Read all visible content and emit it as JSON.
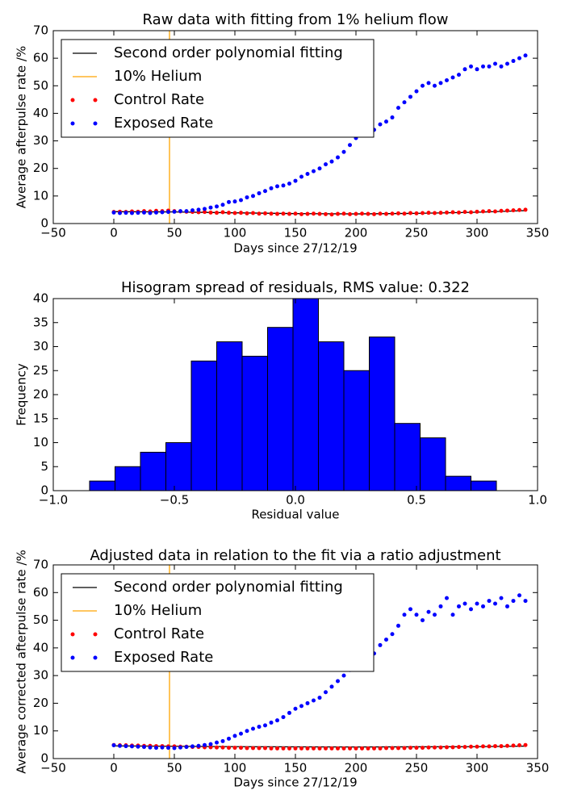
{
  "chart_data": [
    {
      "type": "scatter",
      "title": "Raw data with fitting from 1% helium flow",
      "xlabel": "Days since 27/12/19",
      "ylabel": "Average afterpulse rate /%",
      "xlim": [
        -50,
        350
      ],
      "xticks": [
        {
          "value": -50,
          "label": "−50"
        },
        0,
        50,
        100,
        150,
        200,
        250,
        300,
        350
      ],
      "ylim": [
        0,
        70
      ],
      "yticks": [
        0,
        10,
        20,
        30,
        40,
        50,
        60,
        70
      ],
      "legend": "upper left",
      "x": [
        0,
        5,
        10,
        15,
        20,
        25,
        30,
        35,
        40,
        45,
        50,
        55,
        60,
        65,
        70,
        75,
        80,
        85,
        90,
        95,
        100,
        105,
        110,
        115,
        120,
        125,
        130,
        135,
        140,
        145,
        150,
        155,
        160,
        165,
        170,
        175,
        180,
        185,
        190,
        195,
        200,
        205,
        210,
        215,
        220,
        225,
        230,
        235,
        240,
        245,
        250,
        255,
        260,
        265,
        270,
        275,
        280,
        285,
        290,
        295,
        300,
        305,
        310,
        315,
        320,
        325,
        330,
        335,
        340
      ],
      "series": [
        {
          "name": "Second order polynomial fitting",
          "color": "#000000",
          "type": "line",
          "x": [
            0,
            50,
            100,
            150,
            200,
            250,
            300,
            340
          ],
          "values": [
            4.3,
            4.2,
            3.9,
            3.6,
            3.5,
            3.7,
            4.1,
            4.7
          ]
        },
        {
          "name": "10% Helium",
          "color": "#ffa500",
          "type": "line",
          "x": [
            46,
            46
          ],
          "values": [
            0,
            70
          ]
        },
        {
          "name": "Control Rate",
          "color": "#ff0000",
          "type": "points",
          "values": [
            4.2,
            4.3,
            4.2,
            4.4,
            4.3,
            4.5,
            4.4,
            4.6,
            4.5,
            4.7,
            4.5,
            4.4,
            4.3,
            4.2,
            4.1,
            4.2,
            4.0,
            3.9,
            4.1,
            3.9,
            3.8,
            3.9,
            3.7,
            3.8,
            3.6,
            3.7,
            3.6,
            3.5,
            3.6,
            3.5,
            3.6,
            3.4,
            3.5,
            3.6,
            3.5,
            3.4,
            3.3,
            3.5,
            3.6,
            3.4,
            3.5,
            3.6,
            3.5,
            3.4,
            3.6,
            3.5,
            3.6,
            3.7,
            3.6,
            3.8,
            3.7,
            3.8,
            3.9,
            3.8,
            3.9,
            4.0,
            4.1,
            4.0,
            4.2,
            4.1,
            4.3,
            4.4,
            4.5,
            4.4,
            4.6,
            4.7,
            4.8,
            4.9,
            5.0
          ]
        },
        {
          "name": "Exposed Rate",
          "color": "#0000ff",
          "type": "points",
          "values": [
            4,
            3.8,
            3.9,
            3.8,
            3.9,
            4,
            3.8,
            4,
            4.1,
            4.2,
            4.3,
            4.5,
            4.5,
            4.8,
            5,
            5.3,
            5.8,
            6.2,
            6.8,
            7.8,
            8,
            8.5,
            9.5,
            10,
            11,
            11.8,
            12.8,
            13.5,
            13.8,
            14.5,
            15.5,
            17,
            18,
            19,
            20,
            21.5,
            22.5,
            24,
            26,
            28.5,
            31,
            32,
            32.5,
            34,
            36,
            37,
            38.5,
            42,
            44,
            46,
            48,
            50,
            51,
            50,
            51,
            52,
            53,
            54,
            56,
            57,
            56,
            57,
            57,
            58,
            57,
            58,
            59,
            60,
            61
          ]
        }
      ]
    },
    {
      "type": "histogram",
      "title": "Hisogram spread of residuals, RMS value: 0.322",
      "xlabel": "Residual value",
      "ylabel": "Frequency",
      "xlim": [
        -1,
        1
      ],
      "xticks": [
        {
          "value": -1,
          "label": "−1.0"
        },
        {
          "value": -0.5,
          "label": "−0.5"
        },
        {
          "value": 0,
          "label": "0.0"
        },
        {
          "value": 0.5,
          "label": "0.5"
        },
        {
          "value": 1,
          "label": "1.0"
        }
      ],
      "ylim": [
        0,
        40
      ],
      "yticks": [
        0,
        5,
        10,
        15,
        20,
        25,
        30,
        35,
        40
      ],
      "color": "#0000ff",
      "bins": [
        -0.85,
        -0.745,
        -0.64,
        -0.535,
        -0.43,
        -0.325,
        -0.22,
        -0.115,
        -0.01,
        0.095,
        0.2,
        0.305,
        0.41,
        0.515,
        0.62,
        0.725,
        0.83
      ],
      "values": [
        2,
        5,
        8,
        10,
        27,
        31,
        28,
        34,
        40,
        31,
        25,
        32,
        14,
        11,
        3,
        2
      ]
    },
    {
      "type": "scatter",
      "title": "Adjusted data in relation to the fit via a ratio adjustment",
      "xlabel": "Days since 27/12/19",
      "ylabel": "Average corrected afterpulse rate /%",
      "xlim": [
        -50,
        350
      ],
      "xticks": [
        {
          "value": -50,
          "label": "−50"
        },
        0,
        50,
        100,
        150,
        200,
        250,
        300,
        350
      ],
      "ylim": [
        0,
        70
      ],
      "yticks": [
        0,
        10,
        20,
        30,
        40,
        50,
        60,
        70
      ],
      "legend": "upper left",
      "x": [
        0,
        5,
        10,
        15,
        20,
        25,
        30,
        35,
        40,
        45,
        50,
        55,
        60,
        65,
        70,
        75,
        80,
        85,
        90,
        95,
        100,
        105,
        110,
        115,
        120,
        125,
        130,
        135,
        140,
        145,
        150,
        155,
        160,
        165,
        170,
        175,
        180,
        185,
        190,
        195,
        200,
        205,
        210,
        215,
        220,
        225,
        230,
        235,
        240,
        245,
        250,
        255,
        260,
        265,
        270,
        275,
        280,
        285,
        290,
        295,
        300,
        305,
        310,
        315,
        320,
        325,
        330,
        335,
        340
      ],
      "series": [
        {
          "name": "Second order polynomial fitting",
          "color": "#000000",
          "type": "line",
          "x": [
            0,
            100,
            200,
            300,
            340
          ],
          "values": [
            4.6,
            4.3,
            4.2,
            4.3,
            4.5
          ]
        },
        {
          "name": "10% Helium",
          "color": "#ffa500",
          "type": "line",
          "x": [
            46,
            46
          ],
          "values": [
            0,
            70
          ]
        },
        {
          "name": "Control Rate",
          "color": "#ff0000",
          "type": "points",
          "values": [
            4.9,
            4.8,
            4.8,
            4.7,
            4.7,
            4.6,
            4.6,
            4.5,
            4.5,
            4.4,
            4.4,
            4.3,
            4.3,
            4.2,
            4.2,
            4.1,
            4.1,
            4.0,
            4.0,
            3.9,
            3.9,
            3.9,
            3.8,
            3.8,
            3.8,
            3.8,
            3.7,
            3.7,
            3.7,
            3.7,
            3.7,
            3.7,
            3.7,
            3.7,
            3.7,
            3.7,
            3.7,
            3.7,
            3.7,
            3.7,
            3.7,
            3.7,
            3.7,
            3.7,
            3.7,
            3.8,
            3.8,
            3.8,
            3.8,
            3.9,
            3.9,
            3.9,
            4.0,
            4.0,
            4.0,
            4.1,
            4.1,
            4.2,
            4.2,
            4.3,
            4.3,
            4.4,
            4.4,
            4.5,
            4.5,
            4.6,
            4.7,
            4.8,
            4.9
          ]
        },
        {
          "name": "Exposed Rate",
          "color": "#0000ff",
          "type": "points",
          "values": [
            4.8,
            4.6,
            4.5,
            4.4,
            4.3,
            4.2,
            4.0,
            3.9,
            4.0,
            3.9,
            3.8,
            4.0,
            4.2,
            4.4,
            4.6,
            4.9,
            5.2,
            5.8,
            6.3,
            7.2,
            8.2,
            9,
            10,
            10.8,
            11.5,
            12,
            13,
            13.8,
            15,
            16.5,
            18,
            19,
            20,
            21,
            22,
            24,
            26,
            28,
            30,
            32,
            33,
            34,
            36,
            38,
            41,
            43,
            45,
            48,
            52,
            54,
            52,
            50,
            53,
            52,
            55,
            58,
            52,
            55,
            56,
            54,
            56,
            55,
            57,
            56,
            58,
            55,
            57,
            59,
            57
          ]
        }
      ]
    }
  ]
}
